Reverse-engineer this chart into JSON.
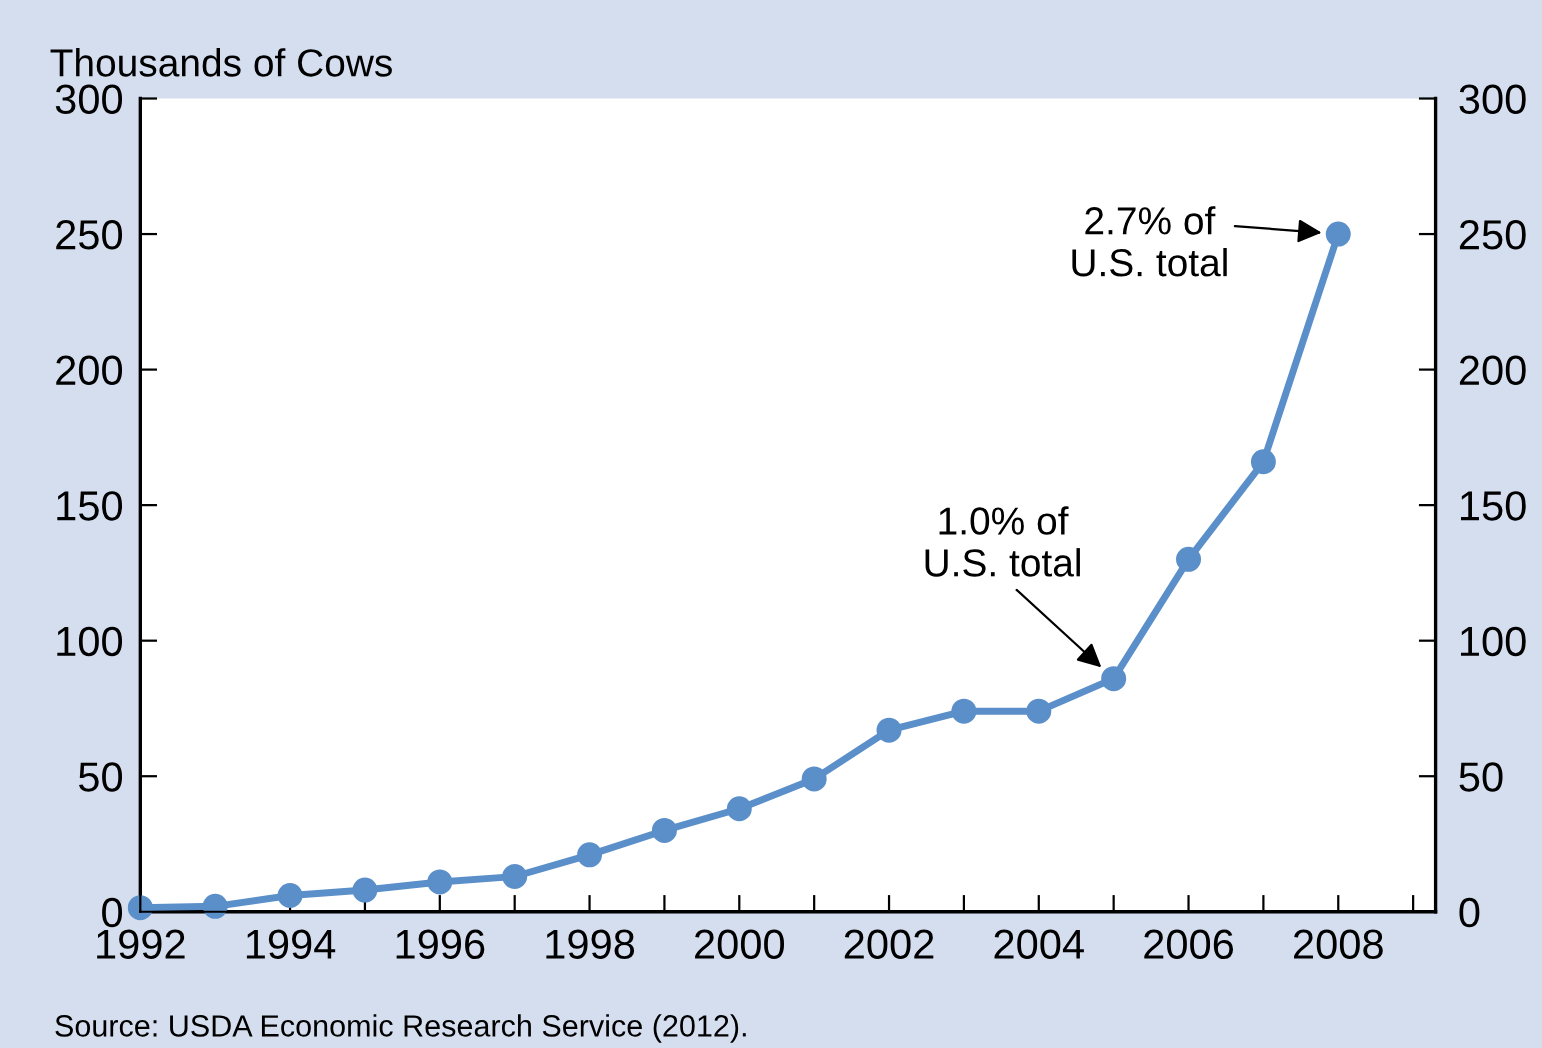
{
  "chart_data": {
    "type": "line",
    "ylabel": "Thousands of Cows",
    "x": [
      1992,
      1993,
      1994,
      1995,
      1996,
      1997,
      1998,
      1999,
      2000,
      2001,
      2002,
      2003,
      2004,
      2005,
      2006,
      2007,
      2008
    ],
    "series": [
      {
        "color": "#5b8fc9",
        "values": [
          1.5,
          2,
          6,
          8,
          11,
          13,
          21,
          30,
          38,
          49,
          67,
          74,
          74,
          86,
          130,
          166,
          250
        ]
      }
    ],
    "xlim": [
      1992,
      2009.3
    ],
    "xticks": [
      1992,
      {
        "value": 1993,
        "label": null
      },
      1994,
      {
        "value": 1995,
        "label": null
      },
      1996,
      {
        "value": 1997,
        "label": null
      },
      1998,
      {
        "value": 1999,
        "label": null
      },
      2000,
      {
        "value": 2001,
        "label": null
      },
      2002,
      {
        "value": 2003,
        "label": null
      },
      2004,
      {
        "value": 2005,
        "label": null
      },
      2006,
      {
        "value": 2007,
        "label": null
      },
      2008,
      {
        "value": 2009,
        "label": null
      }
    ],
    "ylim": [
      0,
      300
    ],
    "yticks": [
      0,
      50,
      100,
      150,
      200,
      250,
      300
    ],
    "y2lim": [
      0,
      300
    ],
    "y2ticks": [
      0,
      50,
      100,
      150,
      200,
      250,
      300
    ],
    "marker": "circle",
    "line_style": "solid",
    "grid": false,
    "legend": false,
    "annotations": [
      {
        "text": "2.7% of\nU.S. total",
        "x": 2008,
        "y": 250
      },
      {
        "text": "1.0% of\nU.S. total",
        "x": 2005,
        "y": 86
      },
      "Source: USDA Economic Research Service (2012)."
    ]
  }
}
